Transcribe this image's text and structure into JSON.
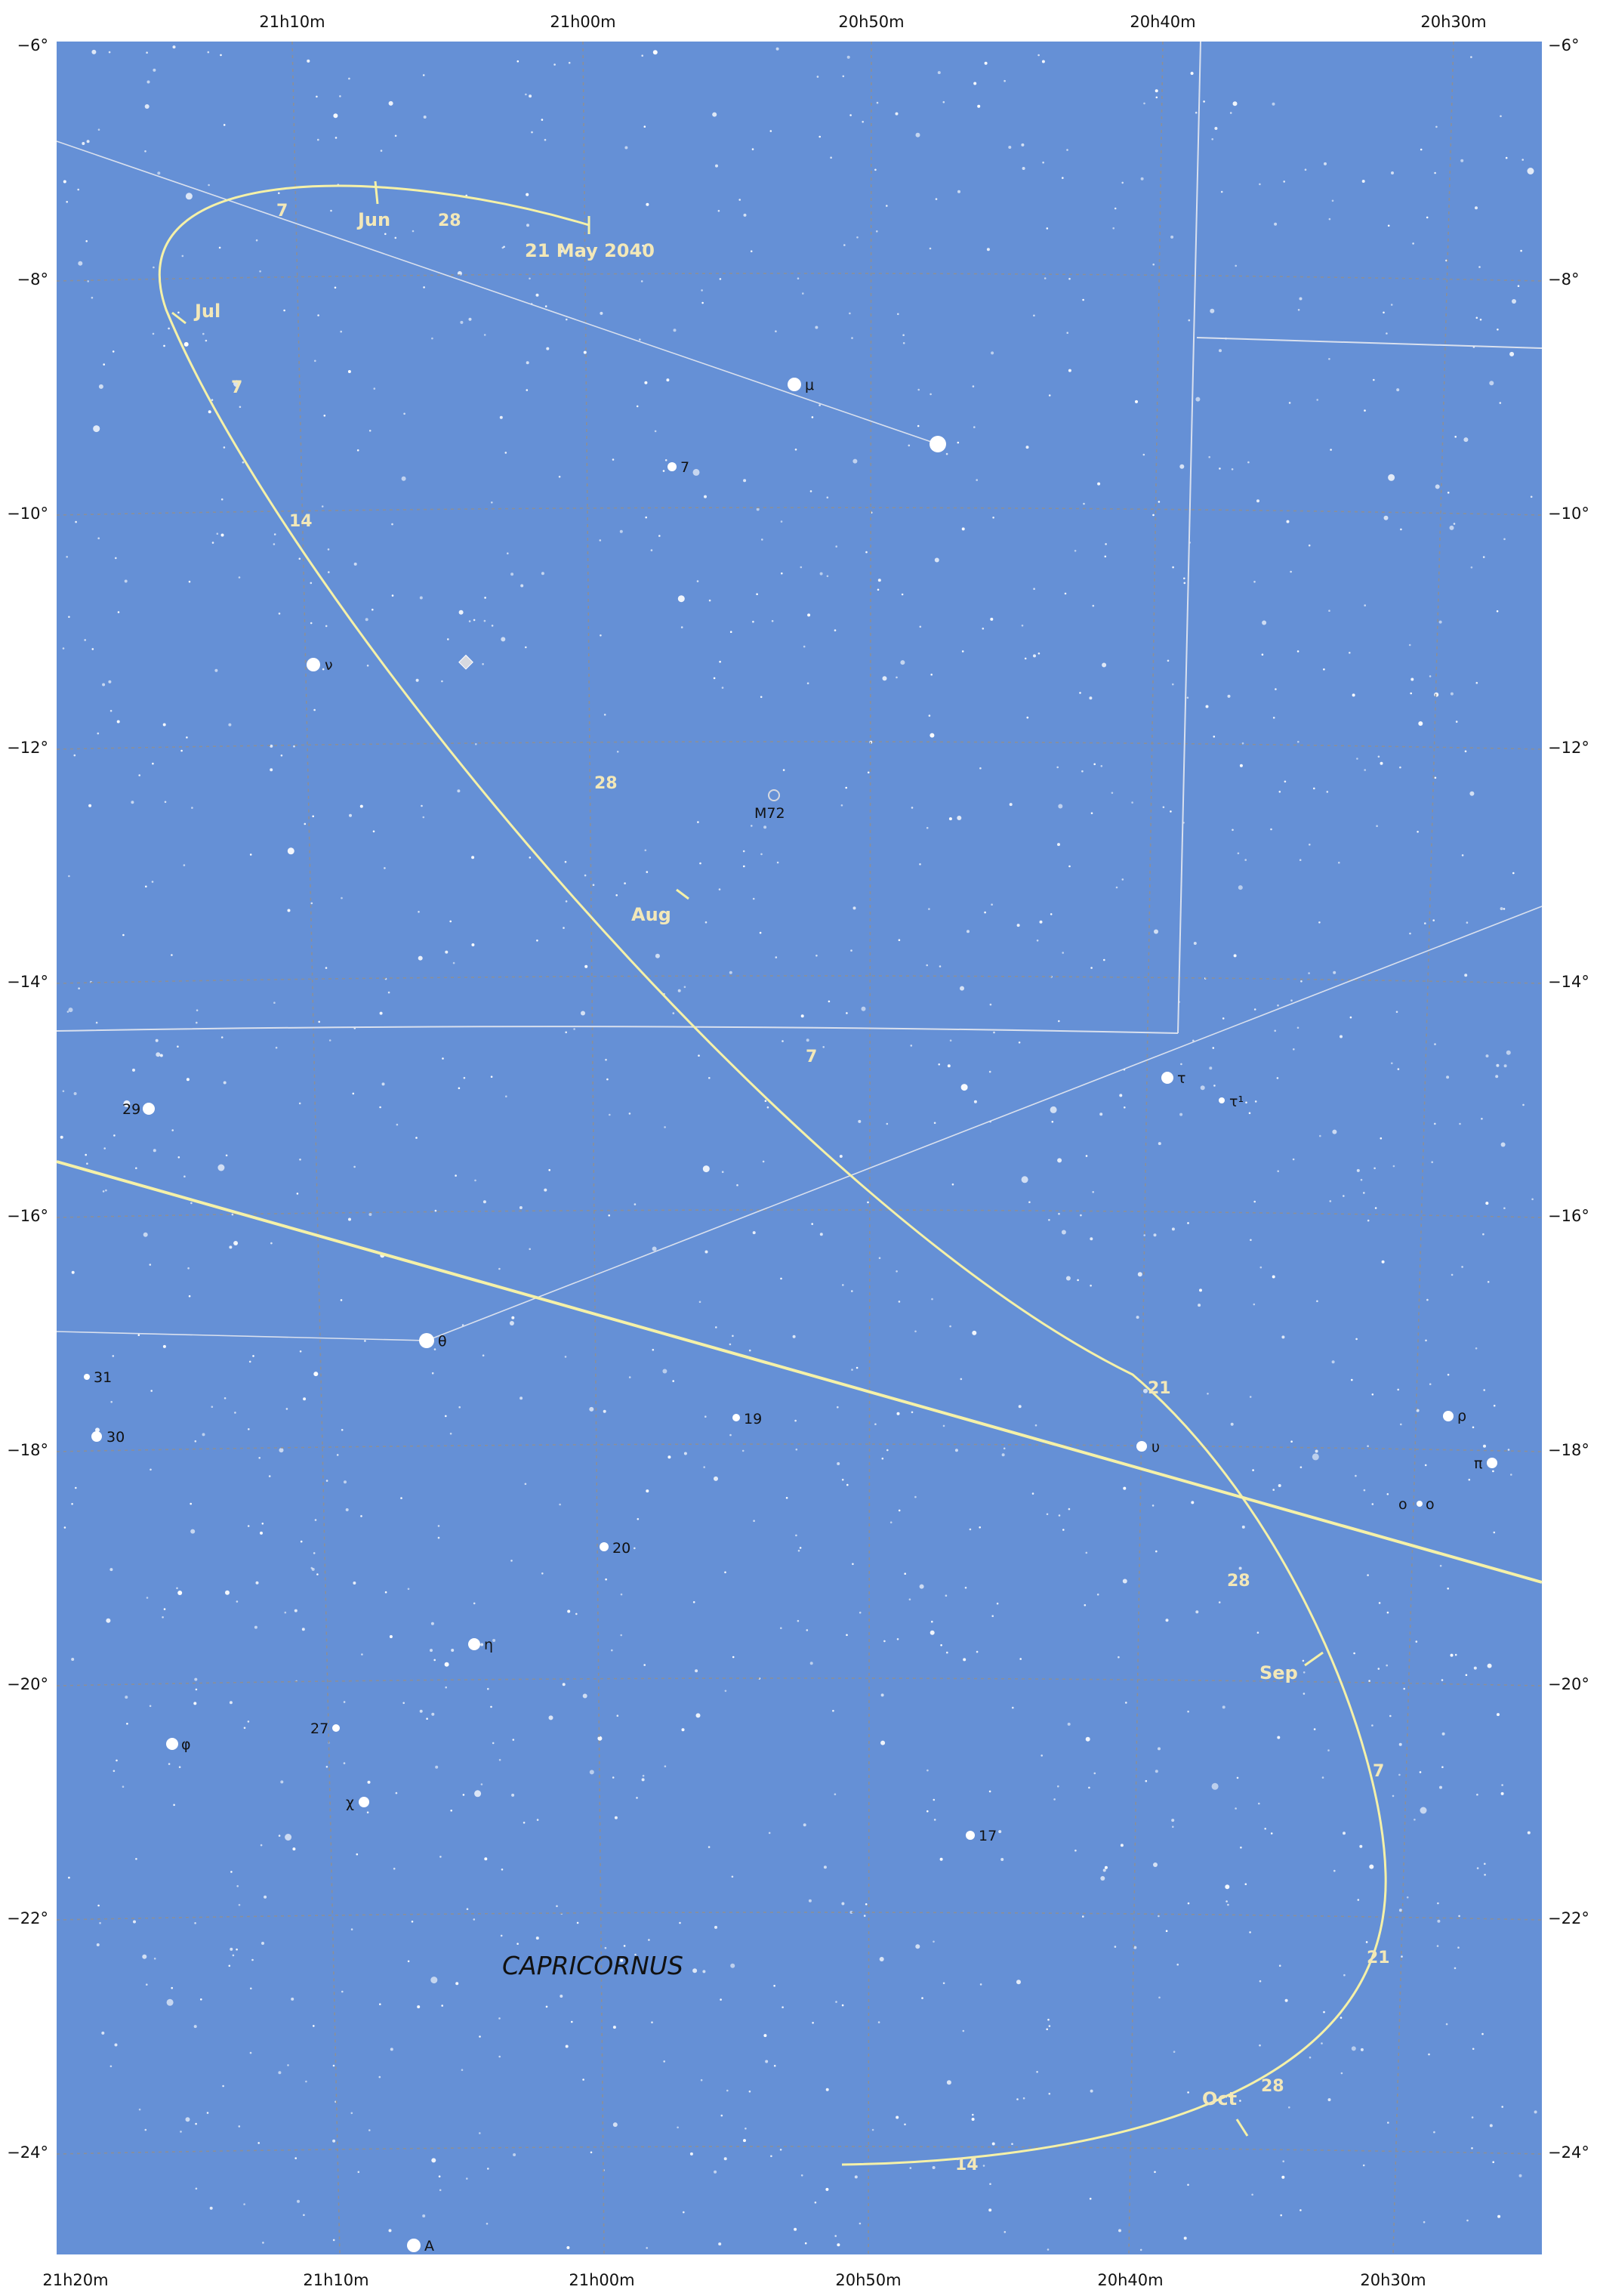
{
  "colors": {
    "sky": "#6590d6",
    "grid": "#8a8f9a",
    "boundary": "#d9e0ee",
    "ecliptic": "#f5f1a8",
    "path": "#f5f1a8",
    "star": "#ffffff",
    "label": "#f3e8b8"
  },
  "axes": {
    "ra_top": [
      "21h10m",
      "21h00m",
      "20h50m",
      "20h40m",
      "20h30m"
    ],
    "ra_bottom": [
      "21h20m",
      "21h10m",
      "21h00m",
      "20h50m",
      "20h40m",
      "20h30m"
    ],
    "dec": [
      "−6°",
      "−8°",
      "−10°",
      "−12°",
      "−14°",
      "−16°",
      "−18°",
      "−20°",
      "−22°",
      "−24°"
    ]
  },
  "constellation": {
    "name": "CAPRICORNUS"
  },
  "track": {
    "start_label": "21 May 2040",
    "months": [
      "Jun",
      "Jul",
      "Aug",
      "Sep",
      "Oct"
    ],
    "dates": [
      "7",
      "28",
      "7",
      "14",
      "28",
      "7",
      "21",
      "28",
      "7",
      "21",
      "28",
      "14"
    ]
  },
  "named_stars": [
    {
      "label": "μ"
    },
    {
      "label": "7"
    },
    {
      "label": "ν"
    },
    {
      "label": "M72"
    },
    {
      "label": "τ"
    },
    {
      "label": "τ¹"
    },
    {
      "label": "29"
    },
    {
      "label": "θ"
    },
    {
      "label": "31"
    },
    {
      "label": "30"
    },
    {
      "label": "19"
    },
    {
      "label": "υ"
    },
    {
      "label": "ρ"
    },
    {
      "label": "π"
    },
    {
      "label": "o"
    },
    {
      "label": "o"
    },
    {
      "label": "20"
    },
    {
      "label": "η"
    },
    {
      "label": "φ"
    },
    {
      "label": "27"
    },
    {
      "label": "χ"
    },
    {
      "label": "17"
    },
    {
      "label": "A"
    }
  ]
}
